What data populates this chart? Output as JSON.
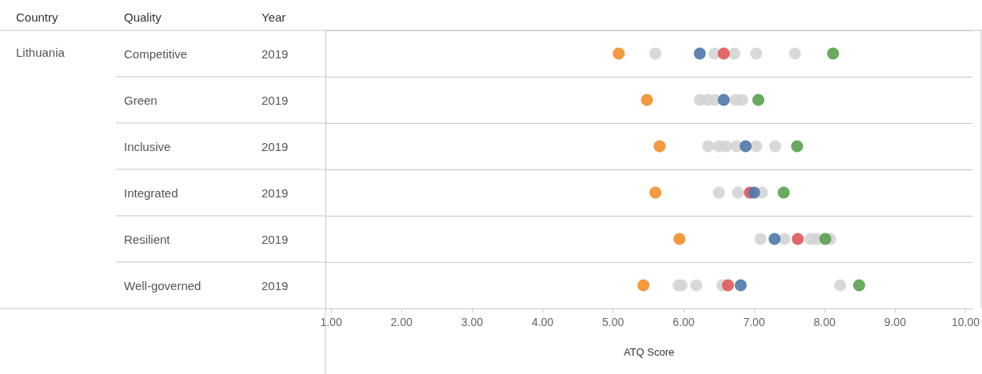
{
  "chart_data": {
    "type": "scatter",
    "orientation": "horizontal",
    "xlabel": "ATQ Score",
    "ylabel": "Quality",
    "annotations": [
      "Country",
      "Lithuania",
      "Year"
    ],
    "categories": [
      "Competitive",
      "Green",
      "Inclusive",
      "Integrated",
      "Resilient",
      "Well-governed"
    ],
    "y2_categories": [
      "2019",
      "2019",
      "2019",
      "2019",
      "2019",
      "2019"
    ],
    "xlim": [
      0.92,
      10.1
    ],
    "xticks": [
      {
        "value": 1,
        "label": "1.00"
      },
      {
        "value": 2,
        "label": "2.00"
      },
      {
        "value": 3,
        "label": "3.00"
      },
      {
        "value": 4,
        "label": "4.00"
      },
      {
        "value": 5,
        "label": "5.00"
      },
      {
        "value": 6,
        "label": "6.00"
      },
      {
        "value": 7,
        "label": "7.00"
      },
      {
        "value": 8,
        "label": "8.00"
      },
      {
        "value": 9,
        "label": "9.00"
      },
      {
        "value": 10,
        "label": "10.00"
      }
    ],
    "grid": "y",
    "marker": "circle",
    "series": [
      {
        "color": "#d4d4d4",
        "values": [
          5.6,
          6.23,
          6.35,
          6.5,
          7.09,
          5.93
        ]
      },
      {
        "color": "#d4d4d4",
        "values": [
          6.44,
          6.34,
          6.5,
          6.77,
          7.43,
          5.97
        ]
      },
      {
        "color": "#d4d4d4",
        "values": [
          6.72,
          6.44,
          6.6,
          7.11,
          7.8,
          6.18
        ]
      },
      {
        "color": "#d4d4d4",
        "values": [
          7.03,
          6.74,
          6.75,
          null,
          7.89,
          6.55
        ]
      },
      {
        "color": "#d4d4d4",
        "values": [
          7.58,
          6.83,
          7.03,
          null,
          8.08,
          8.22
        ]
      },
      {
        "color": "#d4d4d4",
        "values": [
          null,
          null,
          7.3,
          null,
          null,
          null
        ]
      },
      {
        "color": "#f28e2b",
        "values": [
          5.08,
          5.48,
          5.66,
          5.6,
          5.94,
          5.43
        ]
      },
      {
        "color": "#e15759",
        "values": [
          6.57,
          null,
          null,
          6.94,
          7.62,
          6.63
        ]
      },
      {
        "color": "#4e79a7",
        "values": [
          6.23,
          6.57,
          6.88,
          7.0,
          7.29,
          6.81
        ]
      },
      {
        "color": "#59a14f",
        "values": [
          8.12,
          7.06,
          7.61,
          7.42,
          8.01,
          8.49
        ]
      }
    ]
  }
}
